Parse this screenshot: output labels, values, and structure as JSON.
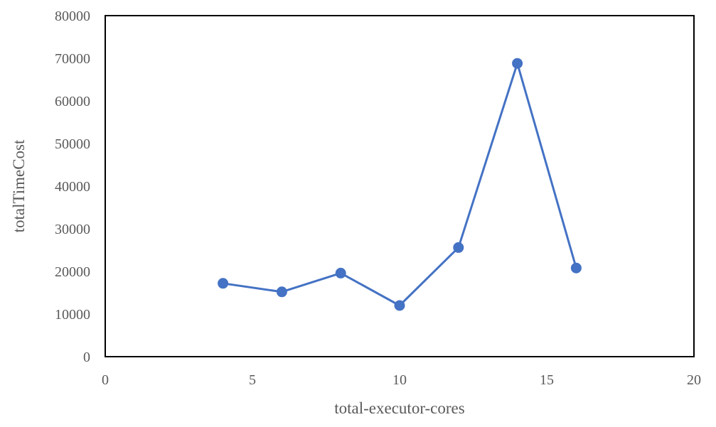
{
  "chart_data": {
    "type": "scatter",
    "title": "",
    "xlabel": "total-executor-cores",
    "ylabel": "totalTimeCost",
    "xlim": [
      0,
      20
    ],
    "ylim": [
      0,
      80000
    ],
    "x_ticks": [
      0,
      5,
      10,
      15,
      20
    ],
    "y_ticks": [
      0,
      10000,
      20000,
      30000,
      40000,
      50000,
      60000,
      70000,
      80000
    ],
    "x_tick_labels": [
      "0",
      "5",
      "10",
      "15",
      "20"
    ],
    "y_tick_labels": [
      "0",
      "10000",
      "20000",
      "30000",
      "40000",
      "50000",
      "60000",
      "70000",
      "80000"
    ],
    "grid": false,
    "legend": "none",
    "series": [
      {
        "color": "#4472C4",
        "line": "straight",
        "marker": "circle",
        "x": [
          4,
          6,
          8,
          10,
          12,
          14,
          16
        ],
        "y": [
          17200,
          15200,
          19600,
          12000,
          25600,
          68800,
          20800
        ]
      }
    ]
  }
}
